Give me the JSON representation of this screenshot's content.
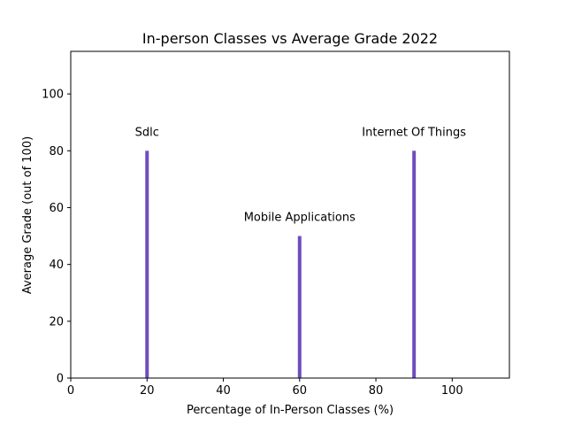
{
  "chart_data": {
    "type": "bar",
    "title": "In-person Classes vs Average Grade 2022",
    "xlabel": "Percentage of In-Person Classes (%)",
    "ylabel": "Average Grade (out of 100)",
    "xlim": [
      0,
      115
    ],
    "ylim": [
      0,
      115
    ],
    "xticks": [
      0,
      20,
      40,
      60,
      80,
      100
    ],
    "yticks": [
      0,
      20,
      40,
      60,
      80,
      100
    ],
    "bar_color": "#6f4dbf",
    "grid": false,
    "points": [
      {
        "x": 20,
        "y": 80,
        "label": "Sdlc"
      },
      {
        "x": 60,
        "y": 50,
        "label": "Mobile Applications"
      },
      {
        "x": 90,
        "y": 80,
        "label": "Internet Of Things"
      }
    ]
  }
}
